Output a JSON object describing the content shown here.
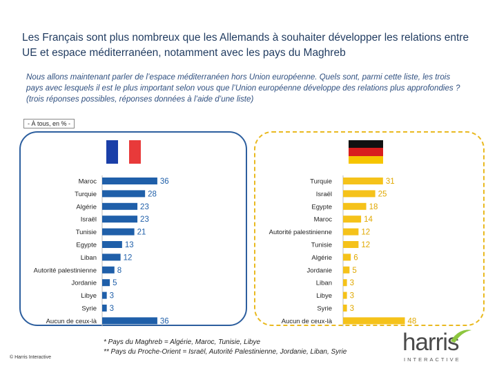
{
  "title": "Les Français sont plus nombreux que les Allemands à souhaiter développer les relations entre UE et espace méditerranéen, notamment avec les pays du Maghreb",
  "question": "Nous allons maintenant parler de l’espace méditerranéen hors Union européenne. Quels sont, parmi cette liste, les trois pays avec lesquels il est le plus important selon vous que l’Union européenne développe des relations plus approfondies ? (trois réponses possibles, réponses données à l’aide d’une liste)",
  "scope_label": "- À tous, en % -",
  "colors": {
    "france_bar": "#1f5fa9",
    "germany_bar": "#f5c21a",
    "france_frame": "#2c5e9e",
    "germany_frame": "#e9b91f"
  },
  "flags": {
    "france": "france-flag-icon",
    "germany": "germany-flag-icon"
  },
  "chart_data": [
    {
      "type": "bar",
      "orientation": "horizontal",
      "series_name": "France",
      "categories": [
        "Maroc",
        "Turquie",
        "Algérie",
        "Israël",
        "Tunisie",
        "Egypte",
        "Liban",
        "Autorité palestinienne",
        "Jordanie",
        "Libye",
        "Syrie",
        "Aucun de ceux-là"
      ],
      "values": [
        36,
        28,
        23,
        23,
        21,
        13,
        12,
        8,
        5,
        3,
        3,
        36
      ],
      "unit": "%",
      "xlim": [
        0,
        50
      ]
    },
    {
      "type": "bar",
      "orientation": "horizontal",
      "series_name": "Allemagne",
      "categories": [
        "Turquie",
        "Israël",
        "Egypte",
        "Maroc",
        "Autorité palestinienne",
        "Tunisie",
        "Algérie",
        "Jordanie",
        "Liban",
        "Libye",
        "Syrie",
        "Aucun de ceux-là"
      ],
      "values": [
        31,
        25,
        18,
        14,
        12,
        12,
        6,
        5,
        3,
        3,
        3,
        48
      ],
      "unit": "%",
      "xlim": [
        0,
        50
      ]
    }
  ],
  "footnotes": [
    "* Pays du Maghreb = Algérie, Maroc, Tunisie, Libye",
    "** Pays du Proche-Orient = Israël, Autorité Palestinienne, Jordanie, Liban, Syrie"
  ],
  "copyright": "© Harris Interactive",
  "logo": {
    "name": "harris",
    "subtitle": "INTERACTIVE"
  }
}
